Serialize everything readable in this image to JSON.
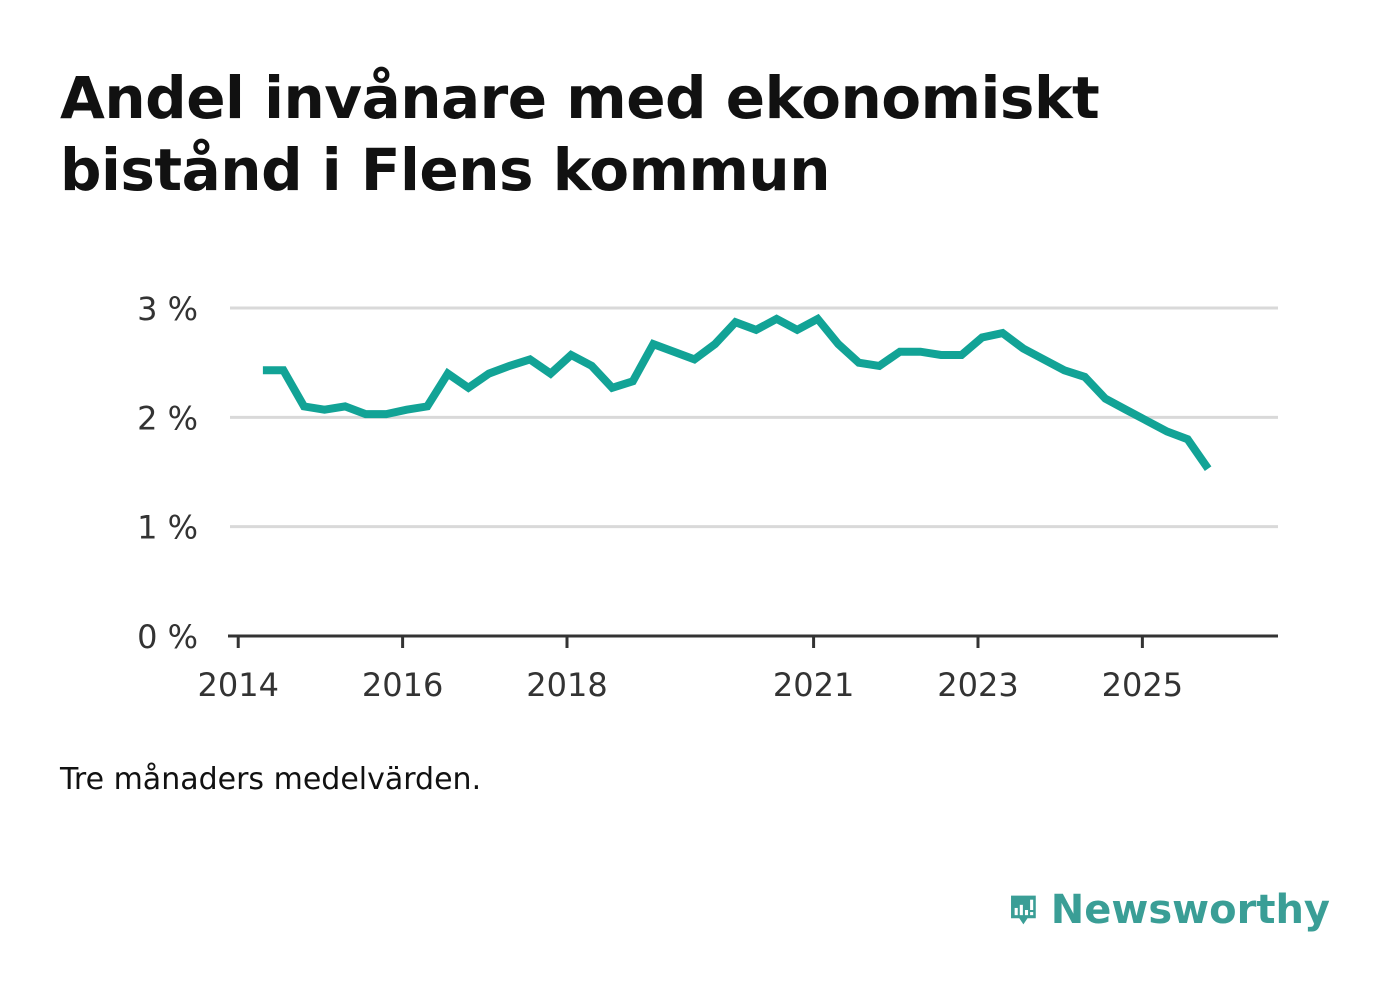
{
  "title": "Andel invånare med ekonomiskt bistånd i Flens kommun",
  "note": "Tre månaders medelvärden.",
  "brand": {
    "name": "Newsworthy",
    "color": "#3a9e96",
    "icon": "newsworthy-bar-chart-icon"
  },
  "colors": {
    "line": "#12a396",
    "grid": "#d9d9d9",
    "axis": "#333333"
  },
  "chart_data": {
    "type": "line",
    "title": "Andel invånare med ekonomiskt bistånd i Flens kommun",
    "xlabel": "",
    "ylabel": "",
    "xlim": [
      2013.9,
      2026.65
    ],
    "ylim": [
      0,
      3
    ],
    "y_ticks": [
      0,
      1,
      2,
      3
    ],
    "y_tick_labels": [
      "0 %",
      "1 %",
      "2 %",
      "3 %"
    ],
    "x_ticks": [
      2014,
      2016,
      2018,
      2021,
      2023,
      2025
    ],
    "x_tick_labels": [
      "2014",
      "2016",
      "2018",
      "2021",
      "2023",
      "2025"
    ],
    "grid": true,
    "series": [
      {
        "name": "Andel invånare med ekonomiskt bistånd",
        "x": [
          2014.3,
          2014.55,
          2014.8,
          2015.05,
          2015.3,
          2015.55,
          2015.8,
          2016.05,
          2016.3,
          2016.55,
          2016.8,
          2017.05,
          2017.3,
          2017.55,
          2017.8,
          2018.05,
          2018.3,
          2018.55,
          2018.8,
          2019.05,
          2019.3,
          2019.55,
          2019.8,
          2020.05,
          2020.3,
          2020.55,
          2020.8,
          2021.05,
          2021.3,
          2021.55,
          2021.8,
          2022.05,
          2022.3,
          2022.55,
          2022.8,
          2023.05,
          2023.3,
          2023.55,
          2023.8,
          2024.05,
          2024.3,
          2024.55,
          2024.8,
          2025.05,
          2025.3,
          2025.55,
          2025.8
        ],
        "values": [
          2.43,
          2.43,
          2.1,
          2.07,
          2.1,
          2.03,
          2.03,
          2.07,
          2.1,
          2.4,
          2.27,
          2.4,
          2.47,
          2.53,
          2.4,
          2.57,
          2.47,
          2.27,
          2.33,
          2.67,
          2.6,
          2.53,
          2.67,
          2.87,
          2.8,
          2.9,
          2.8,
          2.9,
          2.67,
          2.5,
          2.47,
          2.6,
          2.6,
          2.57,
          2.57,
          2.73,
          2.77,
          2.63,
          2.53,
          2.43,
          2.37,
          2.17,
          2.07,
          1.97,
          1.87,
          1.8,
          1.53
        ]
      }
    ]
  }
}
